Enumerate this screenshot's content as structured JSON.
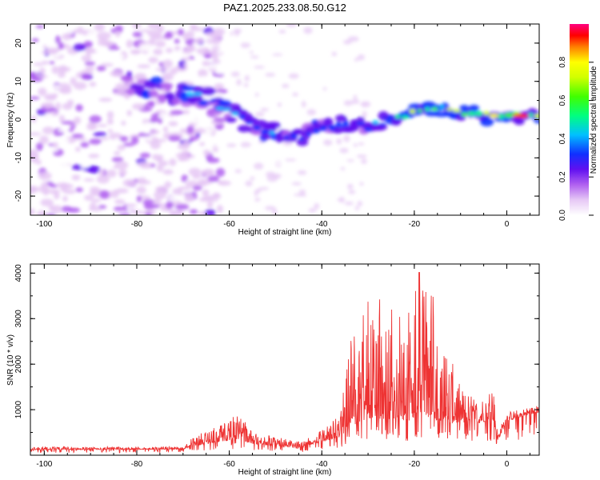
{
  "title": "PAZ1.2025.233.08.50.G12",
  "chart_data": [
    {
      "type": "heatmap",
      "xlabel": "Height of straight line (km)",
      "ylabel": "Frequency (Hz)",
      "xlim": [
        -103,
        7
      ],
      "ylim": [
        -25,
        25
      ],
      "x_ticks": [
        "-100",
        "-80",
        "-60",
        "-40",
        "-20",
        "0"
      ],
      "y_ticks": [
        "-20",
        "-10",
        "0",
        "10",
        "20"
      ],
      "ridge": {
        "description_points": [
          [
            -80,
            9
          ],
          [
            -70,
            7
          ],
          [
            -66,
            6
          ],
          [
            -63,
            4
          ],
          [
            -60,
            2
          ],
          [
            -57,
            0
          ],
          [
            -55,
            -1
          ],
          [
            -50,
            -4
          ],
          [
            -45,
            -5
          ],
          [
            -40,
            -2
          ],
          [
            -35,
            -1
          ],
          [
            -30,
            -2
          ],
          [
            -25,
            0
          ],
          [
            -20,
            2
          ],
          [
            -15,
            3
          ],
          [
            -10,
            2
          ],
          [
            -5,
            1
          ],
          [
            0,
            1
          ],
          [
            5,
            1
          ]
        ]
      },
      "colorbar": {
        "label": "Normalized spectral amplitude",
        "range": [
          0.0,
          1.0
        ],
        "ticks": [
          "0.0",
          "0.2",
          "0.4",
          "0.6",
          "0.8"
        ]
      }
    },
    {
      "type": "line",
      "xlabel": "Height of straight line (km)",
      "ylabel": "SNR (10 * v/v)",
      "xlim": [
        -103,
        7
      ],
      "ylim": [
        0,
        4200
      ],
      "x_ticks": [
        "-100",
        "-80",
        "-60",
        "-40",
        "-20",
        "0"
      ],
      "y_ticks": [
        "1000",
        "2000",
        "3000",
        "4000"
      ],
      "color": "#ee3333",
      "envelope": [
        {
          "x": -103,
          "base": 120,
          "amp": 60
        },
        {
          "x": -70,
          "base": 130,
          "amp": 60
        },
        {
          "x": -68,
          "base": 200,
          "amp": 180
        },
        {
          "x": -62,
          "base": 300,
          "amp": 400
        },
        {
          "x": -58,
          "base": 350,
          "amp": 600
        },
        {
          "x": -55,
          "base": 250,
          "amp": 250
        },
        {
          "x": -45,
          "base": 150,
          "amp": 150
        },
        {
          "x": -40,
          "base": 300,
          "amp": 250
        },
        {
          "x": -36,
          "base": 400,
          "amp": 500
        },
        {
          "x": -34,
          "base": 600,
          "amp": 2000
        },
        {
          "x": -30,
          "base": 800,
          "amp": 2600
        },
        {
          "x": -26,
          "base": 800,
          "amp": 2900
        },
        {
          "x": -22,
          "base": 700,
          "amp": 2400
        },
        {
          "x": -19,
          "base": 900,
          "amp": 3300
        },
        {
          "x": -16,
          "base": 800,
          "amp": 2700
        },
        {
          "x": -13,
          "base": 700,
          "amp": 1700
        },
        {
          "x": -10,
          "base": 700,
          "amp": 800
        },
        {
          "x": -6,
          "base": 700,
          "amp": 500
        },
        {
          "x": -3,
          "base": 800,
          "amp": 800
        },
        {
          "x": -2,
          "base": 300,
          "amp": 200
        },
        {
          "x": 0,
          "base": 750,
          "amp": 200
        },
        {
          "x": 7,
          "base": 950,
          "amp": 150
        }
      ]
    }
  ]
}
